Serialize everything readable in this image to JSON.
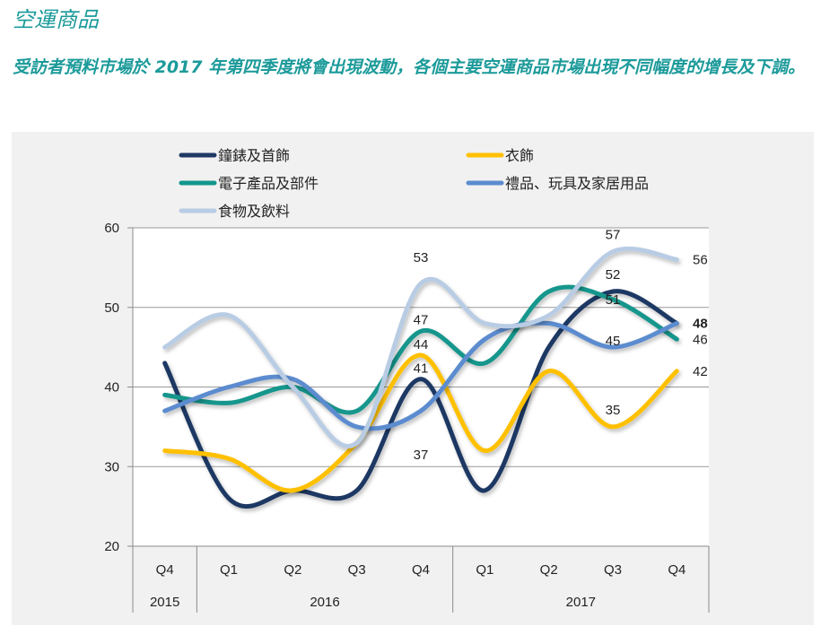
{
  "header": {
    "title": "空運商品",
    "subtitle": "受訪者預料市場於 2017 年第四季度將會出現波動，各個主要空運商品市場出現不同幅度的增長及下調。"
  },
  "chart_data": {
    "type": "line",
    "title": "",
    "xlabel": "",
    "ylabel": "",
    "ylim": [
      20,
      60
    ],
    "yticks": [
      20,
      30,
      40,
      50,
      60
    ],
    "grid": true,
    "legend_position": "top",
    "categories": [
      "Q4",
      "Q1",
      "Q2",
      "Q3",
      "Q4",
      "Q1",
      "Q2",
      "Q3",
      "Q4"
    ],
    "year_groups": [
      {
        "label": "2015",
        "span": 1
      },
      {
        "label": "2016",
        "span": 4
      },
      {
        "label": "2017",
        "span": 4
      }
    ],
    "series": [
      {
        "name": "鐘錶及首飾",
        "color": "#1f3864",
        "values": [
          43,
          26,
          27,
          27,
          41,
          27,
          45,
          52,
          48
        ]
      },
      {
        "name": "衣飾",
        "color": "#ffc000",
        "values": [
          32,
          31,
          27,
          33,
          44,
          32,
          42,
          35,
          42
        ]
      },
      {
        "name": "電子產品及部件",
        "color": "#12968c",
        "values": [
          39,
          38,
          40,
          37,
          47,
          43,
          52,
          51,
          46
        ]
      },
      {
        "name": "禮品、玩具及家居用品",
        "color": "#5b8ccf",
        "values": [
          37,
          40,
          41,
          35,
          37,
          46,
          48,
          45,
          48
        ]
      },
      {
        "name": "食物及飲料",
        "color": "#b8cce4",
        "values": [
          45,
          49,
          40,
          33,
          53,
          48,
          49,
          57,
          56
        ]
      }
    ],
    "data_labels": [
      {
        "series": 4,
        "index": 4,
        "text": "53"
      },
      {
        "series": 2,
        "index": 4,
        "text": "47"
      },
      {
        "series": 1,
        "index": 4,
        "text": "44"
      },
      {
        "series": 0,
        "index": 4,
        "text": "41"
      },
      {
        "series": 3,
        "index": 4,
        "text": "37"
      },
      {
        "series": 4,
        "index": 7,
        "text": "57"
      },
      {
        "series": 0,
        "index": 7,
        "text": "52"
      },
      {
        "series": 2,
        "index": 7,
        "text": "51"
      },
      {
        "series": 3,
        "index": 7,
        "text": "45"
      },
      {
        "series": 1,
        "index": 7,
        "text": "35"
      },
      {
        "series": 4,
        "index": 8,
        "text": "56"
      },
      {
        "series": 0,
        "index": 8,
        "text": "48"
      },
      {
        "series": 2,
        "index": 8,
        "text": "46"
      },
      {
        "series": 1,
        "index": 8,
        "text": "42"
      }
    ]
  }
}
